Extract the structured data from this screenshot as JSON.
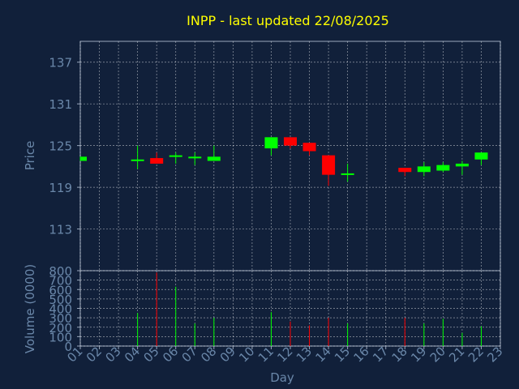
{
  "chart_data": [
    {
      "type": "candlestick",
      "title": "INPP - last updated 22/08/2025",
      "ylabel": "Price",
      "ylim": [
        107,
        140
      ],
      "yticks": [
        113,
        119,
        125,
        131,
        137
      ],
      "grid": true,
      "up_color": "#00ff00",
      "down_color": "#ff0000",
      "x": [
        "01",
        "02",
        "03",
        "04",
        "05",
        "06",
        "07",
        "08",
        "09",
        "10",
        "11",
        "12",
        "13",
        "14",
        "15",
        "16",
        "17",
        "18",
        "19",
        "20",
        "21",
        "22",
        "23"
      ],
      "candles": [
        {
          "day": "01",
          "open": 122.8,
          "close": 123.4,
          "high": 123.4,
          "low": 122.8
        },
        {
          "day": "04",
          "open": 122.8,
          "close": 123.0,
          "high": 125.0,
          "low": 121.6
        },
        {
          "day": "05",
          "open": 123.2,
          "close": 122.4,
          "high": 124.0,
          "low": 122.4
        },
        {
          "day": "06",
          "open": 123.4,
          "close": 123.6,
          "high": 124.0,
          "low": 122.4
        },
        {
          "day": "07",
          "open": 123.2,
          "close": 123.4,
          "high": 124.0,
          "low": 122.2
        },
        {
          "day": "08",
          "open": 122.8,
          "close": 123.4,
          "high": 125.0,
          "low": 122.8
        },
        {
          "day": "11",
          "open": 124.6,
          "close": 126.2,
          "high": 126.2,
          "low": 123.6
        },
        {
          "day": "12",
          "open": 126.2,
          "close": 125.0,
          "high": 126.2,
          "low": 124.6
        },
        {
          "day": "13",
          "open": 125.4,
          "close": 124.2,
          "high": 125.4,
          "low": 123.6
        },
        {
          "day": "14",
          "open": 123.6,
          "close": 120.8,
          "high": 123.6,
          "low": 119.2
        },
        {
          "day": "15",
          "open": 120.8,
          "close": 121.0,
          "high": 122.4,
          "low": 119.8
        },
        {
          "day": "18",
          "open": 121.8,
          "close": 121.2,
          "high": 121.8,
          "low": 120.6
        },
        {
          "day": "19",
          "open": 121.2,
          "close": 122.0,
          "high": 122.6,
          "low": 120.6
        },
        {
          "day": "20",
          "open": 121.4,
          "close": 122.2,
          "high": 122.6,
          "low": 121.2
        },
        {
          "day": "21",
          "open": 122.0,
          "close": 122.4,
          "high": 122.8,
          "low": 120.8
        },
        {
          "day": "22",
          "open": 123.0,
          "close": 124.0,
          "high": 124.0,
          "low": 122.2
        }
      ]
    },
    {
      "type": "bar",
      "ylabel": "Volume (0000)",
      "xlabel": "Day",
      "ylim": [
        0,
        800
      ],
      "yticks": [
        0,
        100,
        200,
        300,
        400,
        500,
        600,
        700,
        800
      ],
      "grid": true,
      "categories": [
        "01",
        "02",
        "03",
        "04",
        "05",
        "06",
        "07",
        "08",
        "09",
        "10",
        "11",
        "12",
        "13",
        "14",
        "15",
        "16",
        "17",
        "18",
        "19",
        "20",
        "21",
        "22",
        "23"
      ],
      "bars": [
        {
          "day": "04",
          "value": 350,
          "color": "#00ff00"
        },
        {
          "day": "05",
          "value": 780,
          "color": "#ff0000"
        },
        {
          "day": "06",
          "value": 630,
          "color": "#00ff00"
        },
        {
          "day": "07",
          "value": 240,
          "color": "#00ff00"
        },
        {
          "day": "08",
          "value": 300,
          "color": "#00ff00"
        },
        {
          "day": "11",
          "value": 360,
          "color": "#00ff00"
        },
        {
          "day": "12",
          "value": 260,
          "color": "#ff0000"
        },
        {
          "day": "13",
          "value": 220,
          "color": "#ff0000"
        },
        {
          "day": "14",
          "value": 300,
          "color": "#ff0000"
        },
        {
          "day": "15",
          "value": 240,
          "color": "#00ff00"
        },
        {
          "day": "18",
          "value": 300,
          "color": "#ff0000"
        },
        {
          "day": "19",
          "value": 240,
          "color": "#00ff00"
        },
        {
          "day": "20",
          "value": 290,
          "color": "#00ff00"
        },
        {
          "day": "21",
          "value": 140,
          "color": "#00ff00"
        },
        {
          "day": "22",
          "value": 210,
          "color": "#00ff00"
        }
      ]
    }
  ],
  "theme": {
    "background": "#11203a",
    "title_color": "#ffff00",
    "text_color": "#6a87a9",
    "frame_color": "#9aa8bd",
    "grid_color": "#ffffff"
  }
}
